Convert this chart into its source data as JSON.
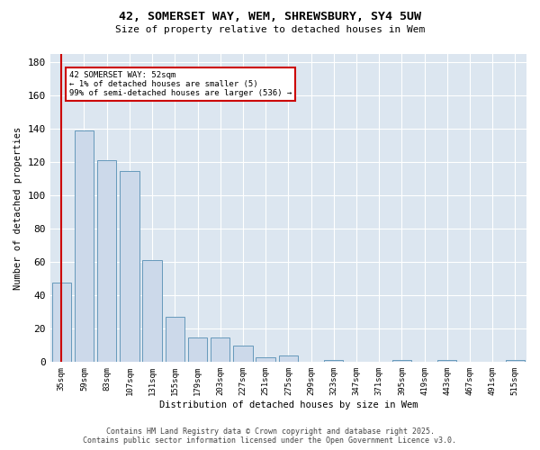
{
  "title": "42, SOMERSET WAY, WEM, SHREWSBURY, SY4 5UW",
  "subtitle": "Size of property relative to detached houses in Wem",
  "xlabel": "Distribution of detached houses by size in Wem",
  "ylabel": "Number of detached properties",
  "categories": [
    "35sqm",
    "59sqm",
    "83sqm",
    "107sqm",
    "131sqm",
    "155sqm",
    "179sqm",
    "203sqm",
    "227sqm",
    "251sqm",
    "275sqm",
    "299sqm",
    "323sqm",
    "347sqm",
    "371sqm",
    "395sqm",
    "419sqm",
    "443sqm",
    "467sqm",
    "491sqm",
    "515sqm"
  ],
  "values": [
    48,
    139,
    121,
    115,
    61,
    27,
    15,
    15,
    10,
    3,
    4,
    0,
    1,
    0,
    0,
    1,
    0,
    1,
    0,
    0,
    1
  ],
  "bar_color": "#ccd9ea",
  "bar_edge_color": "#6699bb",
  "vline_color": "#cc0000",
  "vline_x": 0.0,
  "annotation_text": "42 SOMERSET WAY: 52sqm\n← 1% of detached houses are smaller (5)\n99% of semi-detached houses are larger (536) →",
  "annotation_box_facecolor": "#ffffff",
  "annotation_box_edgecolor": "#cc0000",
  "ylim": [
    0,
    185
  ],
  "yticks": [
    0,
    20,
    40,
    60,
    80,
    100,
    120,
    140,
    160,
    180
  ],
  "footer1": "Contains HM Land Registry data © Crown copyright and database right 2025.",
  "footer2": "Contains public sector information licensed under the Open Government Licence v3.0.",
  "bg_color": "#ffffff",
  "plot_bg_color": "#dce6f0",
  "grid_color": "#ffffff"
}
